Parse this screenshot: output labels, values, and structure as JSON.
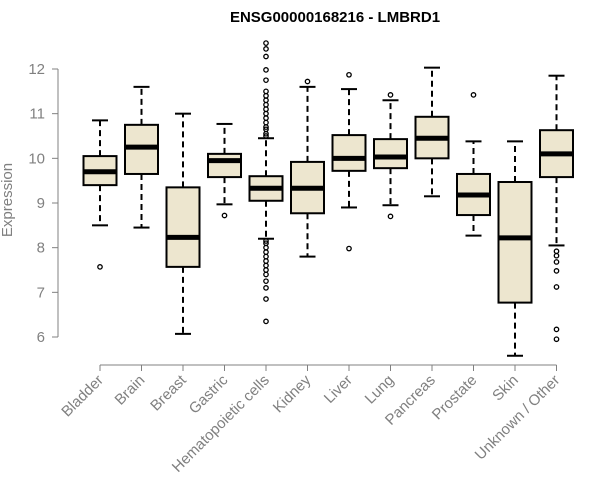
{
  "chart_data": {
    "type": "boxplot",
    "title": "ENSG00000168216 - LMBRD1",
    "ylabel": "Expression",
    "xlabel": "",
    "ylim": [
      5.5,
      12.6
    ],
    "yticks": [
      6,
      7,
      8,
      9,
      10,
      11,
      12
    ],
    "box_fill": "#ede6cf",
    "categories": [
      "Bladder",
      "Brain",
      "Breast",
      "Gastric",
      "Hematopoietic cells",
      "Kidney",
      "Liver",
      "Lung",
      "Pancreas",
      "Prostate",
      "Skin",
      "Unknown / Other"
    ],
    "boxes": [
      {
        "whisker_low": 8.5,
        "q1": 9.4,
        "median": 9.7,
        "q3": 10.05,
        "whisker_high": 10.85,
        "outliers": [
          7.57
        ]
      },
      {
        "whisker_low": 8.45,
        "q1": 9.65,
        "median": 10.25,
        "q3": 10.75,
        "whisker_high": 11.6,
        "outliers": []
      },
      {
        "whisker_low": 6.07,
        "q1": 7.57,
        "median": 8.23,
        "q3": 9.35,
        "whisker_high": 11.0,
        "outliers": []
      },
      {
        "whisker_low": 8.97,
        "q1": 9.58,
        "median": 9.95,
        "q3": 10.1,
        "whisker_high": 10.77,
        "outliers": [
          8.72
        ]
      },
      {
        "whisker_low": 8.2,
        "q1": 9.05,
        "median": 9.33,
        "q3": 9.6,
        "whisker_high": 10.45,
        "outliers": [
          12.58,
          12.45,
          12.28,
          11.98,
          11.75,
          11.5,
          11.4,
          11.3,
          11.2,
          11.1,
          11.0,
          10.9,
          10.8,
          10.7,
          10.65,
          10.55,
          10.5,
          8.15,
          8.1,
          8.0,
          7.9,
          7.8,
          7.7,
          7.6,
          7.5,
          7.4,
          7.25,
          7.1,
          6.85,
          6.35
        ]
      },
      {
        "whisker_low": 7.8,
        "q1": 8.77,
        "median": 9.33,
        "q3": 9.92,
        "whisker_high": 11.6,
        "outliers": [
          11.72
        ]
      },
      {
        "whisker_low": 8.9,
        "q1": 9.72,
        "median": 10.0,
        "q3": 10.52,
        "whisker_high": 11.55,
        "outliers": [
          11.87,
          7.98
        ]
      },
      {
        "whisker_low": 8.95,
        "q1": 9.78,
        "median": 10.03,
        "q3": 10.43,
        "whisker_high": 11.3,
        "outliers": [
          11.42,
          8.7
        ]
      },
      {
        "whisker_low": 9.15,
        "q1": 10.0,
        "median": 10.45,
        "q3": 10.93,
        "whisker_high": 12.03,
        "outliers": []
      },
      {
        "whisker_low": 8.27,
        "q1": 8.73,
        "median": 9.18,
        "q3": 9.65,
        "whisker_high": 10.38,
        "outliers": [
          11.42
        ]
      },
      {
        "whisker_low": 5.58,
        "q1": 6.77,
        "median": 8.22,
        "q3": 9.47,
        "whisker_high": 10.38,
        "outliers": []
      },
      {
        "whisker_low": 8.05,
        "q1": 9.58,
        "median": 10.1,
        "q3": 10.63,
        "whisker_high": 11.85,
        "outliers": [
          7.92,
          7.82,
          7.68,
          7.48,
          7.12,
          6.17,
          5.95
        ]
      }
    ]
  }
}
